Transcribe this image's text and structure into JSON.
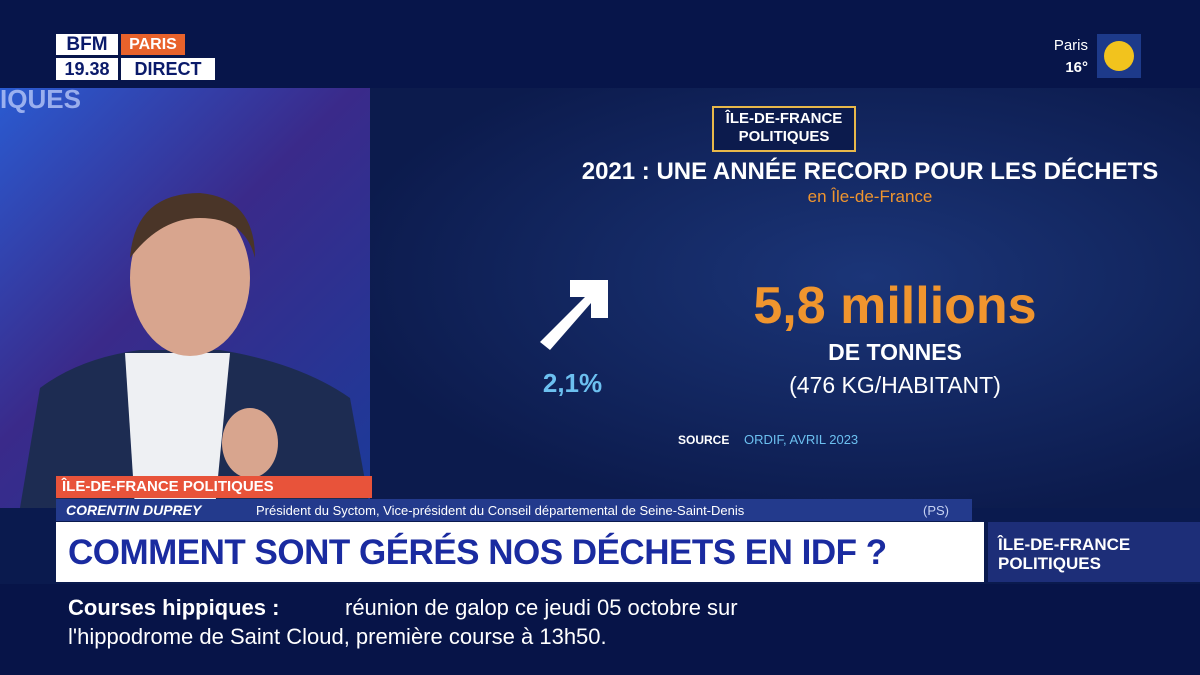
{
  "channel": {
    "brand": "BFM",
    "city": "PARIS",
    "time": "19.38",
    "live": "DIRECT"
  },
  "weather": {
    "city": "Paris",
    "temperature": "16°"
  },
  "background_text": "IQUES",
  "infographic": {
    "badge": [
      "ÎLE-DE-FRANCE",
      "POLITIQUES"
    ],
    "title": "2021 : UNE ANNÉE RECORD POUR LES DÉCHETS",
    "subtitle": "en Île-de-France",
    "change": "2,1%",
    "amount": "5,8 millions",
    "unit": "DE TONNES",
    "per_capita": "(476 KG/HABITANT)",
    "source_label": "SOURCE",
    "source": "ORDIF, AVRIL 2023"
  },
  "lower_third": {
    "program": "ÎLE-DE-FRANCE POLITIQUES",
    "guest_name": "CORENTIN DUPREY",
    "guest_role": "Président du Syctom, Vice-président du Conseil départemental de Seine-Saint-Denis",
    "guest_party": "(PS)",
    "headline": "COMMENT SONT GÉRÉS NOS DÉCHETS EN IDF ?",
    "program_logo": [
      "ÎLE-DE-FRANCE",
      "POLITIQUES"
    ]
  },
  "ticker": {
    "topic": "Courses hippiques :",
    "text_line1": "réunion de galop ce jeudi 05 octobre sur",
    "text_line2": "l'hippodrome de Saint Cloud, première course à 13h50."
  }
}
